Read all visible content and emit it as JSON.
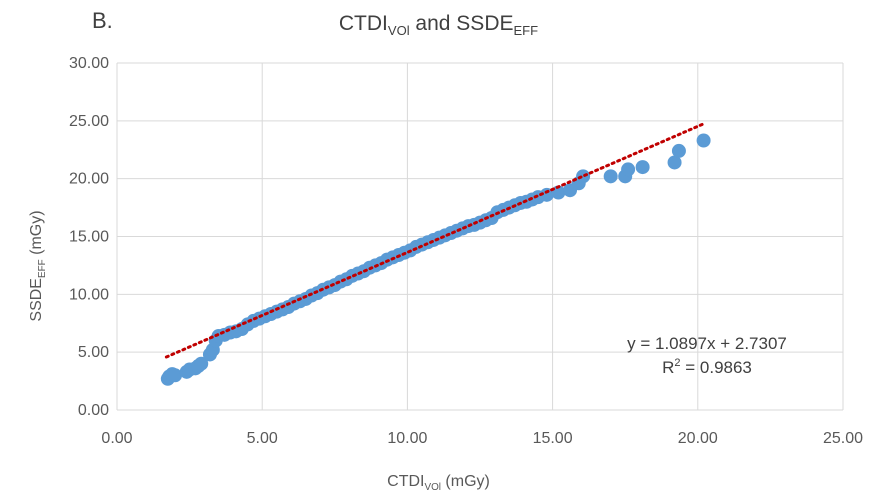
{
  "chart_data": {
    "type": "scatter",
    "panel_label": "B.",
    "title": {
      "main": "CTDI",
      "sub1": "VOl",
      "mid": " and SSDE",
      "sub2": "EFF"
    },
    "xlabel": {
      "main": "CTDI",
      "sub": "VOl",
      "unit": " (mGy)"
    },
    "ylabel": {
      "main": "SSDE",
      "sub": "EFF",
      "unit": " (mGy)"
    },
    "xlim": [
      0,
      25
    ],
    "ylim": [
      0,
      30
    ],
    "x_ticks": [
      0,
      5,
      10,
      15,
      20,
      25
    ],
    "x_tick_labels": [
      "0.00",
      "5.00",
      "10.00",
      "15.00",
      "20.00",
      "25.00"
    ],
    "y_ticks": [
      0,
      5,
      10,
      15,
      20,
      25,
      30
    ],
    "y_tick_labels": [
      "0.00",
      "5.00",
      "10.00",
      "15.00",
      "20.00",
      "25.00",
      "30.00"
    ],
    "grid": true,
    "marker_color": "#5b9bd5",
    "trendline": {
      "slope": 1.0897,
      "intercept": 2.7307,
      "x_range": [
        1.7,
        20.2
      ],
      "color": "#c00000",
      "style": "dotted"
    },
    "annotation": {
      "equation": "y = 1.0897x + 2.7307",
      "r2_prefix": "R",
      "r2_sup": "2",
      "r2_value": " = 0.9863"
    },
    "points": [
      [
        1.75,
        2.7
      ],
      [
        1.8,
        2.9
      ],
      [
        1.9,
        3.1
      ],
      [
        2.0,
        3.0
      ],
      [
        2.4,
        3.3
      ],
      [
        2.5,
        3.5
      ],
      [
        2.7,
        3.6
      ],
      [
        2.8,
        3.8
      ],
      [
        2.9,
        4.0
      ],
      [
        3.2,
        4.8
      ],
      [
        3.3,
        5.2
      ],
      [
        3.4,
        6.0
      ],
      [
        3.5,
        6.4
      ],
      [
        3.7,
        6.5
      ],
      [
        3.9,
        6.7
      ],
      [
        4.1,
        6.8
      ],
      [
        4.3,
        7.0
      ],
      [
        4.5,
        7.4
      ],
      [
        4.7,
        7.7
      ],
      [
        4.9,
        7.9
      ],
      [
        5.1,
        8.1
      ],
      [
        5.3,
        8.3
      ],
      [
        5.5,
        8.5
      ],
      [
        5.7,
        8.7
      ],
      [
        5.9,
        8.9
      ],
      [
        6.1,
        9.2
      ],
      [
        6.3,
        9.4
      ],
      [
        6.5,
        9.6
      ],
      [
        6.7,
        9.9
      ],
      [
        6.9,
        10.1
      ],
      [
        7.1,
        10.4
      ],
      [
        7.3,
        10.6
      ],
      [
        7.5,
        10.8
      ],
      [
        7.7,
        11.1
      ],
      [
        7.9,
        11.3
      ],
      [
        8.1,
        11.6
      ],
      [
        8.3,
        11.8
      ],
      [
        8.5,
        12.0
      ],
      [
        8.7,
        12.3
      ],
      [
        8.9,
        12.5
      ],
      [
        9.1,
        12.7
      ],
      [
        9.3,
        13.0
      ],
      [
        9.5,
        13.2
      ],
      [
        9.7,
        13.4
      ],
      [
        9.9,
        13.6
      ],
      [
        10.1,
        13.8
      ],
      [
        10.3,
        14.1
      ],
      [
        10.5,
        14.3
      ],
      [
        10.7,
        14.5
      ],
      [
        10.9,
        14.7
      ],
      [
        11.1,
        14.9
      ],
      [
        11.3,
        15.1
      ],
      [
        11.5,
        15.3
      ],
      [
        11.7,
        15.5
      ],
      [
        11.9,
        15.7
      ],
      [
        12.1,
        15.9
      ],
      [
        12.3,
        16.0
      ],
      [
        12.5,
        16.2
      ],
      [
        12.7,
        16.4
      ],
      [
        12.9,
        16.6
      ],
      [
        13.1,
        17.1
      ],
      [
        13.3,
        17.3
      ],
      [
        13.5,
        17.5
      ],
      [
        13.7,
        17.7
      ],
      [
        13.9,
        17.9
      ],
      [
        14.1,
        18.0
      ],
      [
        14.3,
        18.2
      ],
      [
        14.5,
        18.4
      ],
      [
        14.8,
        18.6
      ],
      [
        15.2,
        18.8
      ],
      [
        15.6,
        19.0
      ],
      [
        15.9,
        19.6
      ],
      [
        16.05,
        20.2
      ],
      [
        17.0,
        20.2
      ],
      [
        17.5,
        20.2
      ],
      [
        17.6,
        20.8
      ],
      [
        18.1,
        21.0
      ],
      [
        19.2,
        21.4
      ],
      [
        19.35,
        22.4
      ],
      [
        20.2,
        23.3
      ]
    ]
  }
}
